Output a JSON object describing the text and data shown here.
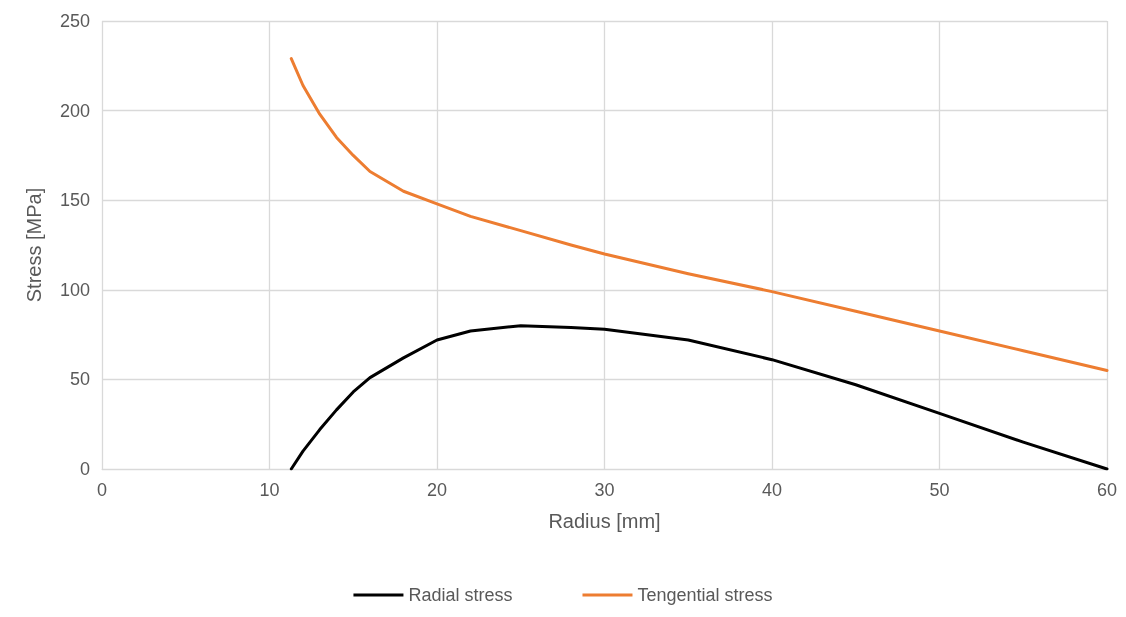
{
  "chart_data": {
    "type": "line",
    "xlabel": "Radius [mm]",
    "ylabel": "Stress [MPa]",
    "xlim": [
      0,
      60
    ],
    "xticks": [
      0,
      10,
      20,
      30,
      40,
      50,
      60
    ],
    "ylim": [
      0,
      250
    ],
    "yticks": [
      0,
      50,
      100,
      150,
      200,
      250
    ],
    "grid": true,
    "legend": "bottom",
    "marker": "none",
    "line_style": "solid",
    "series": [
      {
        "name": "Radial stress",
        "color": "#000000",
        "x": [
          11.3,
          12,
          13,
          14,
          15,
          16,
          18,
          20,
          22,
          25,
          28,
          30,
          35,
          40,
          45,
          50,
          55,
          60
        ],
        "values": [
          0,
          10,
          22,
          33,
          43,
          51,
          62,
          72,
          77,
          80,
          79,
          78,
          72,
          61,
          47,
          31,
          15,
          0
        ]
      },
      {
        "name": "Tengential stress",
        "color": "#ed7d31",
        "x": [
          11.3,
          12,
          13,
          14,
          15,
          16,
          18,
          20,
          22,
          25,
          28,
          30,
          35,
          40,
          45,
          50,
          55,
          60
        ],
        "values": [
          229,
          214,
          198,
          185,
          175,
          166,
          155,
          148,
          141,
          133,
          125,
          120,
          109,
          99,
          88,
          77,
          66,
          55
        ]
      }
    ]
  }
}
